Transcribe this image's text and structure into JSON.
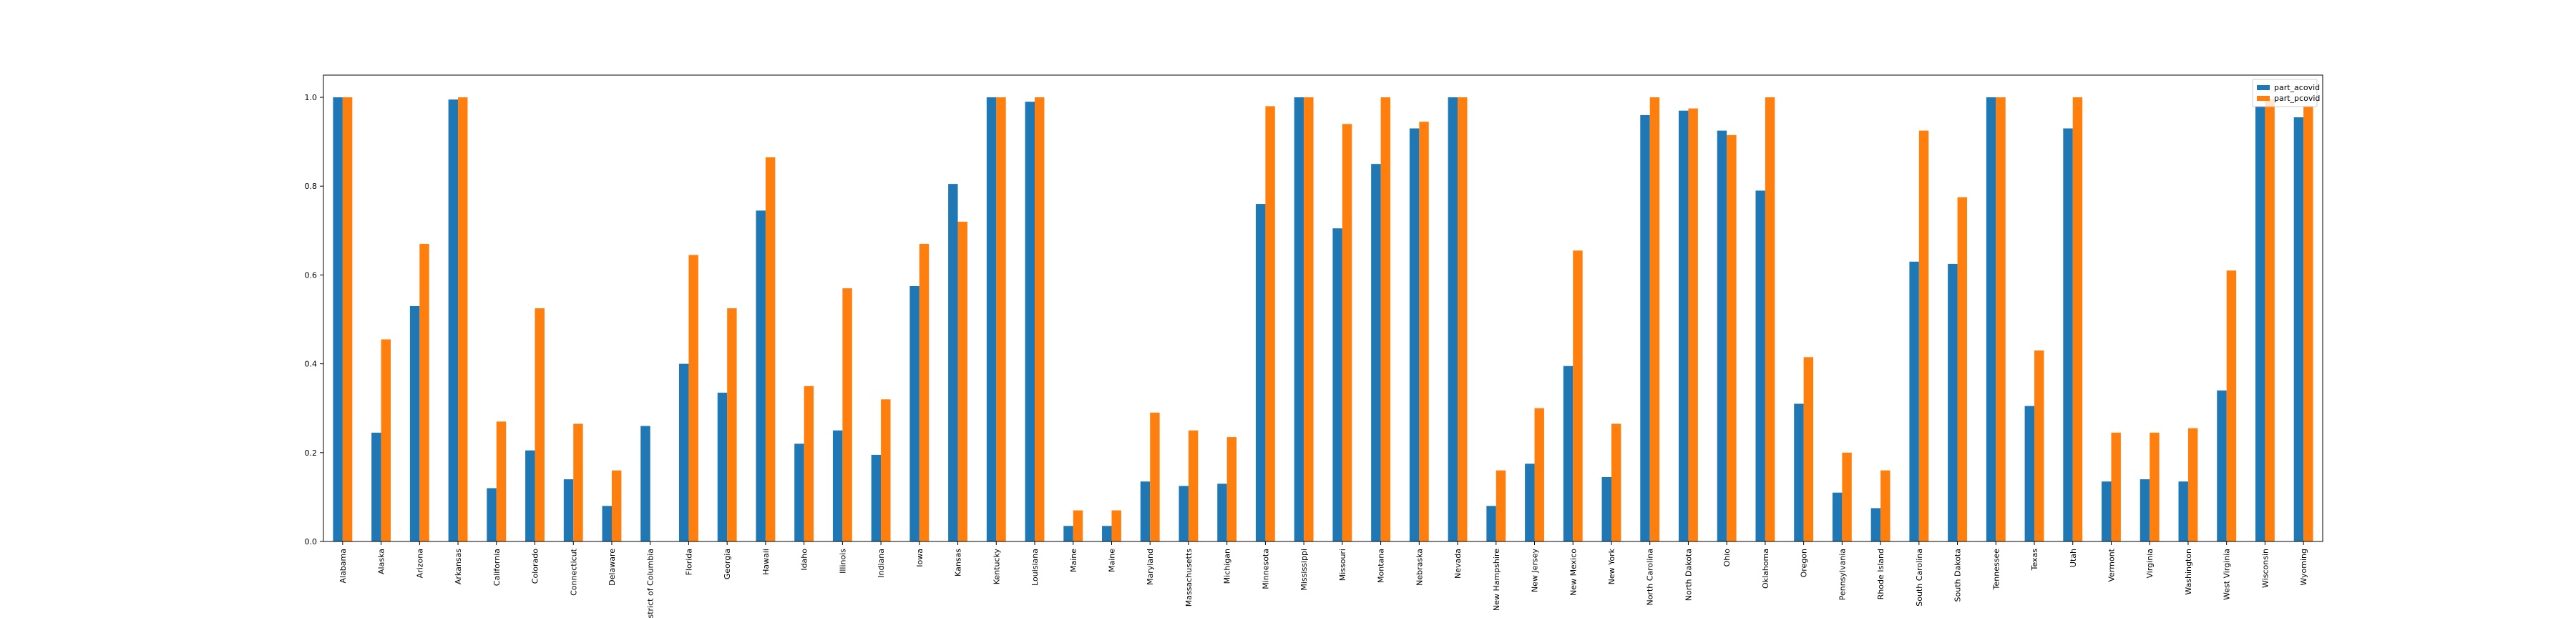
{
  "chart_data": {
    "type": "bar",
    "title": "",
    "xlabel": "",
    "ylabel": "",
    "ylim": [
      0,
      1.05
    ],
    "yticks": [
      0.0,
      0.2,
      0.4,
      0.6,
      0.8,
      1.0
    ],
    "ytick_labels": [
      "0.0",
      "0.2",
      "0.4",
      "0.6",
      "0.8",
      "1.0"
    ],
    "legend_position": "top-right",
    "grid": false,
    "categories": [
      "Alabama",
      "Alaska",
      "Arizona",
      "Arkansas",
      "California",
      "Colorado",
      "Connecticut",
      "Delaware",
      "District of Columbia",
      "Florida",
      "Georgia",
      "Hawaii",
      "Idaho",
      "Illinois",
      "Indiana",
      "Iowa",
      "Kansas",
      "Kentucky",
      "Louisiana",
      "Maine",
      "Maine",
      "Maryland",
      "Massachusetts",
      "Michigan",
      "Minnesota",
      "Mississippi",
      "Missouri",
      "Montana",
      "Nebraska",
      "Nevada",
      "New Hampshire",
      "New Jersey",
      "New Mexico",
      "New York",
      "North Carolina",
      "North Dakota",
      "Ohio",
      "Oklahoma",
      "Oregon",
      "Pennsylvania",
      "Rhode Island",
      "South Carolina",
      "South Dakota",
      "Tennessee",
      "Texas",
      "Utah",
      "Vermont",
      "Virginia",
      "Washington",
      "West Virginia",
      "Wisconsin",
      "Wyoming"
    ],
    "series": [
      {
        "name": "part_acovid",
        "color": "#1f77b4",
        "values": [
          1.0,
          0.245,
          0.53,
          0.995,
          0.12,
          0.205,
          0.14,
          0.08,
          0.26,
          0.4,
          0.335,
          0.745,
          0.22,
          0.25,
          0.195,
          0.575,
          0.805,
          1.0,
          0.99,
          0.035,
          0.035,
          0.135,
          0.125,
          0.13,
          0.76,
          1.0,
          0.705,
          0.85,
          0.93,
          1.0,
          0.08,
          0.175,
          0.395,
          0.145,
          0.96,
          0.97,
          0.925,
          0.79,
          0.31,
          0.11,
          0.075,
          0.63,
          0.625,
          1.0,
          0.305,
          0.93,
          0.135,
          0.14,
          0.135,
          0.34,
          0.98,
          0.955
        ]
      },
      {
        "name": "part_pcovid",
        "color": "#ff7f0e",
        "values": [
          1.0,
          0.455,
          0.67,
          1.0,
          0.27,
          0.525,
          0.265,
          0.16,
          0.0,
          0.645,
          0.525,
          0.865,
          0.35,
          0.57,
          0.32,
          0.67,
          0.72,
          1.0,
          1.0,
          0.07,
          0.07,
          0.29,
          0.25,
          0.235,
          0.98,
          1.0,
          0.94,
          1.0,
          0.945,
          1.0,
          0.16,
          0.3,
          0.655,
          0.265,
          1.0,
          0.975,
          0.915,
          1.0,
          0.415,
          0.2,
          0.16,
          0.925,
          0.775,
          1.0,
          0.43,
          1.0,
          0.245,
          0.245,
          0.255,
          0.61,
          0.995,
          0.98
        ]
      }
    ]
  }
}
